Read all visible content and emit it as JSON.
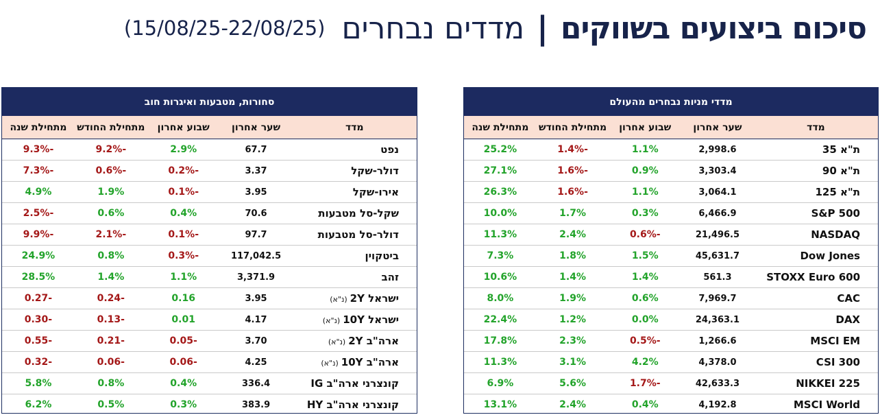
{
  "header": {
    "title_main": "סיכום ביצועים בשווקים",
    "separator": "|",
    "title_sub": "מדדים נבחרים",
    "dates": "(15/08/25-22/08/25)"
  },
  "columns": [
    "מדד",
    "שער אחרון",
    "שבוע אחרון",
    "מתחילת החודש",
    "מתחילת שנה"
  ],
  "colors": {
    "navy": "#1c2a60",
    "header_row": "#fbe0d4",
    "positive": "#22a32a",
    "negative": "#a41818"
  },
  "right_panel": {
    "title": "מדדי מניות נבחרים מהעולם",
    "rows": [
      {
        "name": "ת\"א 35",
        "last": "2,998.6",
        "week": "1.1%",
        "mtd": "-1.4%",
        "ytd": "25.2%"
      },
      {
        "name": "ת\"א 90",
        "last": "3,303.4",
        "week": "0.9%",
        "mtd": "-1.6%",
        "ytd": "27.1%"
      },
      {
        "name": "ת\"א 125",
        "last": "3,064.1",
        "week": "1.1%",
        "mtd": "-1.6%",
        "ytd": "26.3%"
      },
      {
        "name": "S&P 500",
        "last": "6,466.9",
        "week": "0.3%",
        "mtd": "1.7%",
        "ytd": "10.0%"
      },
      {
        "name": "NASDAQ",
        "last": "21,496.5",
        "week": "-0.6%",
        "mtd": "2.4%",
        "ytd": "11.3%"
      },
      {
        "name": "Dow Jones",
        "last": "45,631.7",
        "week": "1.5%",
        "mtd": "1.8%",
        "ytd": "7.3%"
      },
      {
        "name": "STOXX Euro 600",
        "last": "561.3",
        "week": "1.4%",
        "mtd": "1.4%",
        "ytd": "10.6%"
      },
      {
        "name": "CAC",
        "last": "7,969.7",
        "week": "0.6%",
        "mtd": "1.9%",
        "ytd": "8.0%"
      },
      {
        "name": "DAX",
        "last": "24,363.1",
        "week": "0.0%",
        "mtd": "1.2%",
        "ytd": "22.4%"
      },
      {
        "name": "MSCI EM",
        "last": "1,266.6",
        "week": "-0.5%",
        "mtd": "2.3%",
        "ytd": "17.8%"
      },
      {
        "name": "CSI 300",
        "last": "4,378.0",
        "week": "4.2%",
        "mtd": "3.1%",
        "ytd": "11.3%"
      },
      {
        "name": "NIKKEI 225",
        "last": "42,633.3",
        "week": "-1.7%",
        "mtd": "5.6%",
        "ytd": "6.9%"
      },
      {
        "name": "MSCI World",
        "last": "4,192.8",
        "week": "0.4%",
        "mtd": "2.4%",
        "ytd": "13.1%"
      }
    ]
  },
  "left_panel": {
    "title": "סחורות, מטבעות ואיגרות חוב",
    "rows": [
      {
        "name": "נפט",
        "note": "",
        "last": "67.7",
        "week": "2.9%",
        "mtd": "-9.2%",
        "ytd": "-9.3%"
      },
      {
        "name": "דולר-שקל",
        "note": "",
        "last": "3.37",
        "week": "-0.2%",
        "mtd": "-0.6%",
        "ytd": "-7.3%"
      },
      {
        "name": "אירו-שקל",
        "note": "",
        "last": "3.95",
        "week": "-0.1%",
        "mtd": "1.9%",
        "ytd": "4.9%"
      },
      {
        "name": "שקל-סל מטבעות",
        "note": "",
        "last": "70.6",
        "week": "0.4%",
        "mtd": "0.6%",
        "ytd": "-2.5%"
      },
      {
        "name": "דולר-סל מטבעות",
        "note": "",
        "last": "97.7",
        "week": "-0.1%",
        "mtd": "-2.1%",
        "ytd": "-9.9%"
      },
      {
        "name": "ביטקוין",
        "note": "",
        "last": "117,042.5",
        "week": "-0.3%",
        "mtd": "0.8%",
        "ytd": "24.9%"
      },
      {
        "name": "זהב",
        "note": "",
        "last": "3,371.9",
        "week": "1.1%",
        "mtd": "1.4%",
        "ytd": "28.5%"
      },
      {
        "name": "ישראל 2Y",
        "note": "(נ\"א)",
        "last": "3.95",
        "week": "0.16",
        "mtd": "-0.24",
        "ytd": "-0.27"
      },
      {
        "name": "ישראל 10Y",
        "note": "(נ\"א)",
        "last": "4.17",
        "week": "0.01",
        "mtd": "-0.13",
        "ytd": "-0.30"
      },
      {
        "name": "ארה\"ב 2Y",
        "note": "(נ\"א)",
        "last": "3.70",
        "week": "-0.05",
        "mtd": "-0.21",
        "ytd": "-0.55"
      },
      {
        "name": "ארה\"ב 10Y",
        "note": "(נ\"א)",
        "last": "4.25",
        "week": "-0.06",
        "mtd": "-0.06",
        "ytd": "-0.32"
      },
      {
        "name": "קונצרני ארה\"ב IG",
        "note": "",
        "last": "336.4",
        "week": "0.4%",
        "mtd": "0.8%",
        "ytd": "5.8%"
      },
      {
        "name": "קונצרני ארה\"ב HY",
        "note": "",
        "last": "383.9",
        "week": "0.3%",
        "mtd": "0.5%",
        "ytd": "6.2%"
      }
    ]
  }
}
